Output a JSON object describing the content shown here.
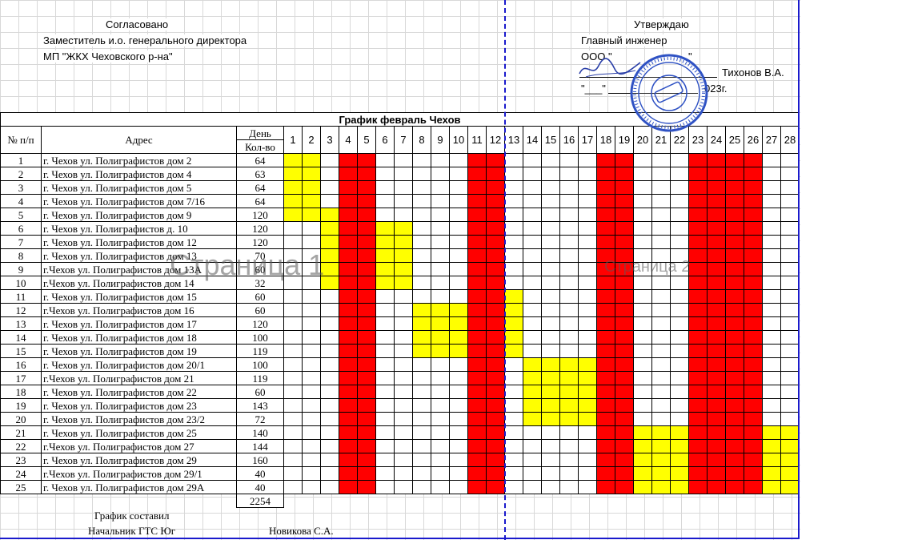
{
  "header_left": {
    "title": "Согласовано",
    "line1": "Заместитель и.о. генерального директора",
    "line2": "МП \"ЖКХ Чеховского р-на\""
  },
  "header_right": {
    "title": "Утверждаю",
    "line1": "Главный инженер",
    "line2": "ООО \"",
    "line2_tail": "\"",
    "name": "Тихонов В.А.",
    "date_prefix": "\"___\"",
    "date_suffix": "023г."
  },
  "schedule": {
    "title": "График февраль Чехов",
    "col_num": "№ п/п",
    "col_address": "Адрес",
    "col_day": "День",
    "col_qty": "Кол-во",
    "days": [
      "1",
      "2",
      "3",
      "4",
      "5",
      "6",
      "7",
      "8",
      "9",
      "10",
      "11",
      "12",
      "13",
      "14",
      "15",
      "16",
      "17",
      "18",
      "19",
      "20",
      "21",
      "22",
      "23",
      "24",
      "25",
      "26",
      "27",
      "28"
    ],
    "red_days": [
      4,
      5,
      11,
      12,
      18,
      19,
      23,
      24,
      25,
      26
    ],
    "rows": [
      {
        "n": "1",
        "addr": "г. Чехов ул. Полиграфистов дом 2",
        "qty": "64",
        "yellow": [
          1,
          2
        ]
      },
      {
        "n": "2",
        "addr": "г. Чехов ул. Полиграфистов дом 4",
        "qty": "63",
        "yellow": [
          1,
          2
        ]
      },
      {
        "n": "3",
        "addr": "г. Чехов ул. Полиграфистов дом 5",
        "qty": "64",
        "yellow": [
          1,
          2
        ]
      },
      {
        "n": "4",
        "addr": "г. Чехов ул. Полиграфистов дом 7/16",
        "qty": "64",
        "yellow": [
          1,
          2
        ]
      },
      {
        "n": "5",
        "addr": "г. Чехов ул. Полиграфистов дом 9",
        "qty": "120",
        "yellow": [
          1,
          2,
          3
        ]
      },
      {
        "n": "6",
        "addr": "г. Чехов ул. Полиграфистов д. 10",
        "qty": "120",
        "yellow": [
          3,
          6,
          7
        ]
      },
      {
        "n": "7",
        "addr": "г. Чехов ул. Полиграфистов дом 12",
        "qty": "120",
        "yellow": [
          3,
          6,
          7
        ]
      },
      {
        "n": "8",
        "addr": "г. Чехов ул. Полиграфистов дом 13",
        "qty": "70",
        "yellow": [
          3,
          6,
          7
        ]
      },
      {
        "n": "9",
        "addr": "г.Чехов ул. Полиграфистов дом 13А",
        "qty": "60",
        "yellow": [
          3,
          6,
          7
        ]
      },
      {
        "n": "10",
        "addr": "г.Чехов ул. Полиграфистов дом 14",
        "qty": "32",
        "yellow": [
          3,
          6,
          7
        ]
      },
      {
        "n": "11",
        "addr": "г. Чехов ул. Полиграфистов дом 15",
        "qty": "60",
        "yellow": [
          13
        ]
      },
      {
        "n": "12",
        "addr": "г.Чехов ул. Полиграфистов дом 16",
        "qty": "60",
        "yellow": [
          8,
          9,
          10,
          13
        ]
      },
      {
        "n": "13",
        "addr": "г. Чехов ул. Полиграфистов дом 17",
        "qty": "120",
        "yellow": [
          8,
          9,
          10,
          13
        ]
      },
      {
        "n": "14",
        "addr": "г. Чехов ул. Полиграфистов дом 18",
        "qty": "100",
        "yellow": [
          8,
          9,
          10,
          13
        ]
      },
      {
        "n": "15",
        "addr": "г. Чехов ул. Полиграфистов дом 19",
        "qty": "119",
        "yellow": [
          8,
          9,
          10,
          13
        ]
      },
      {
        "n": "16",
        "addr": "г. Чехов ул. Полиграфистов дом 20/1",
        "qty": "100",
        "yellow": [
          14,
          15,
          16,
          17
        ]
      },
      {
        "n": "17",
        "addr": "г.Чехов ул. Полиграфистов дом 21",
        "qty": "119",
        "yellow": [
          14,
          15,
          16,
          17
        ]
      },
      {
        "n": "18",
        "addr": "г. Чехов ул. Полиграфистов дом 22",
        "qty": "60",
        "yellow": [
          14,
          15,
          16,
          17
        ]
      },
      {
        "n": "19",
        "addr": "г. Чехов ул. Полиграфистов дом 23",
        "qty": "143",
        "yellow": [
          14,
          15,
          16,
          17
        ]
      },
      {
        "n": "20",
        "addr": "г. Чехов ул. Полиграфистов дом 23/2",
        "qty": "72",
        "yellow": [
          14,
          15,
          16,
          17
        ]
      },
      {
        "n": "21",
        "addr": "г. Чехов ул. Полиграфистов дом 25",
        "qty": "140",
        "yellow": [
          20,
          21,
          22,
          27,
          28
        ]
      },
      {
        "n": "22",
        "addr": "г.Чехов ул. Полиграфистов дом 27",
        "qty": "144",
        "yellow": [
          20,
          21,
          22,
          27,
          28
        ]
      },
      {
        "n": "23",
        "addr": "г. Чехов ул. Полиграфистов дом 29",
        "qty": "160",
        "yellow": [
          20,
          21,
          22,
          27,
          28
        ]
      },
      {
        "n": "24",
        "addr": "г.Чехов ул. Полиграфистов дом 29/1",
        "qty": "40",
        "yellow": [
          20,
          21,
          22,
          27,
          28
        ]
      },
      {
        "n": "25",
        "addr": "г. Чехов ул. Полиграфистов дом 29А",
        "qty": "40",
        "yellow": [
          20,
          21,
          22,
          27,
          28
        ]
      }
    ],
    "total": "2254"
  },
  "colors": {
    "weekend_red": "#ff0000",
    "work_yellow": "#ffff00",
    "page_break_blue": "#1a1acc"
  },
  "watermarks": {
    "page1": "Страница 1",
    "page2": "Страница 2"
  },
  "footer": {
    "composed": "График составил",
    "position": "Начальник ГТС Юг",
    "name": "Новикова С.А."
  },
  "stamp": {
    "icon": "round-seal-stamp",
    "signature_icon": "handwritten-signature"
  }
}
